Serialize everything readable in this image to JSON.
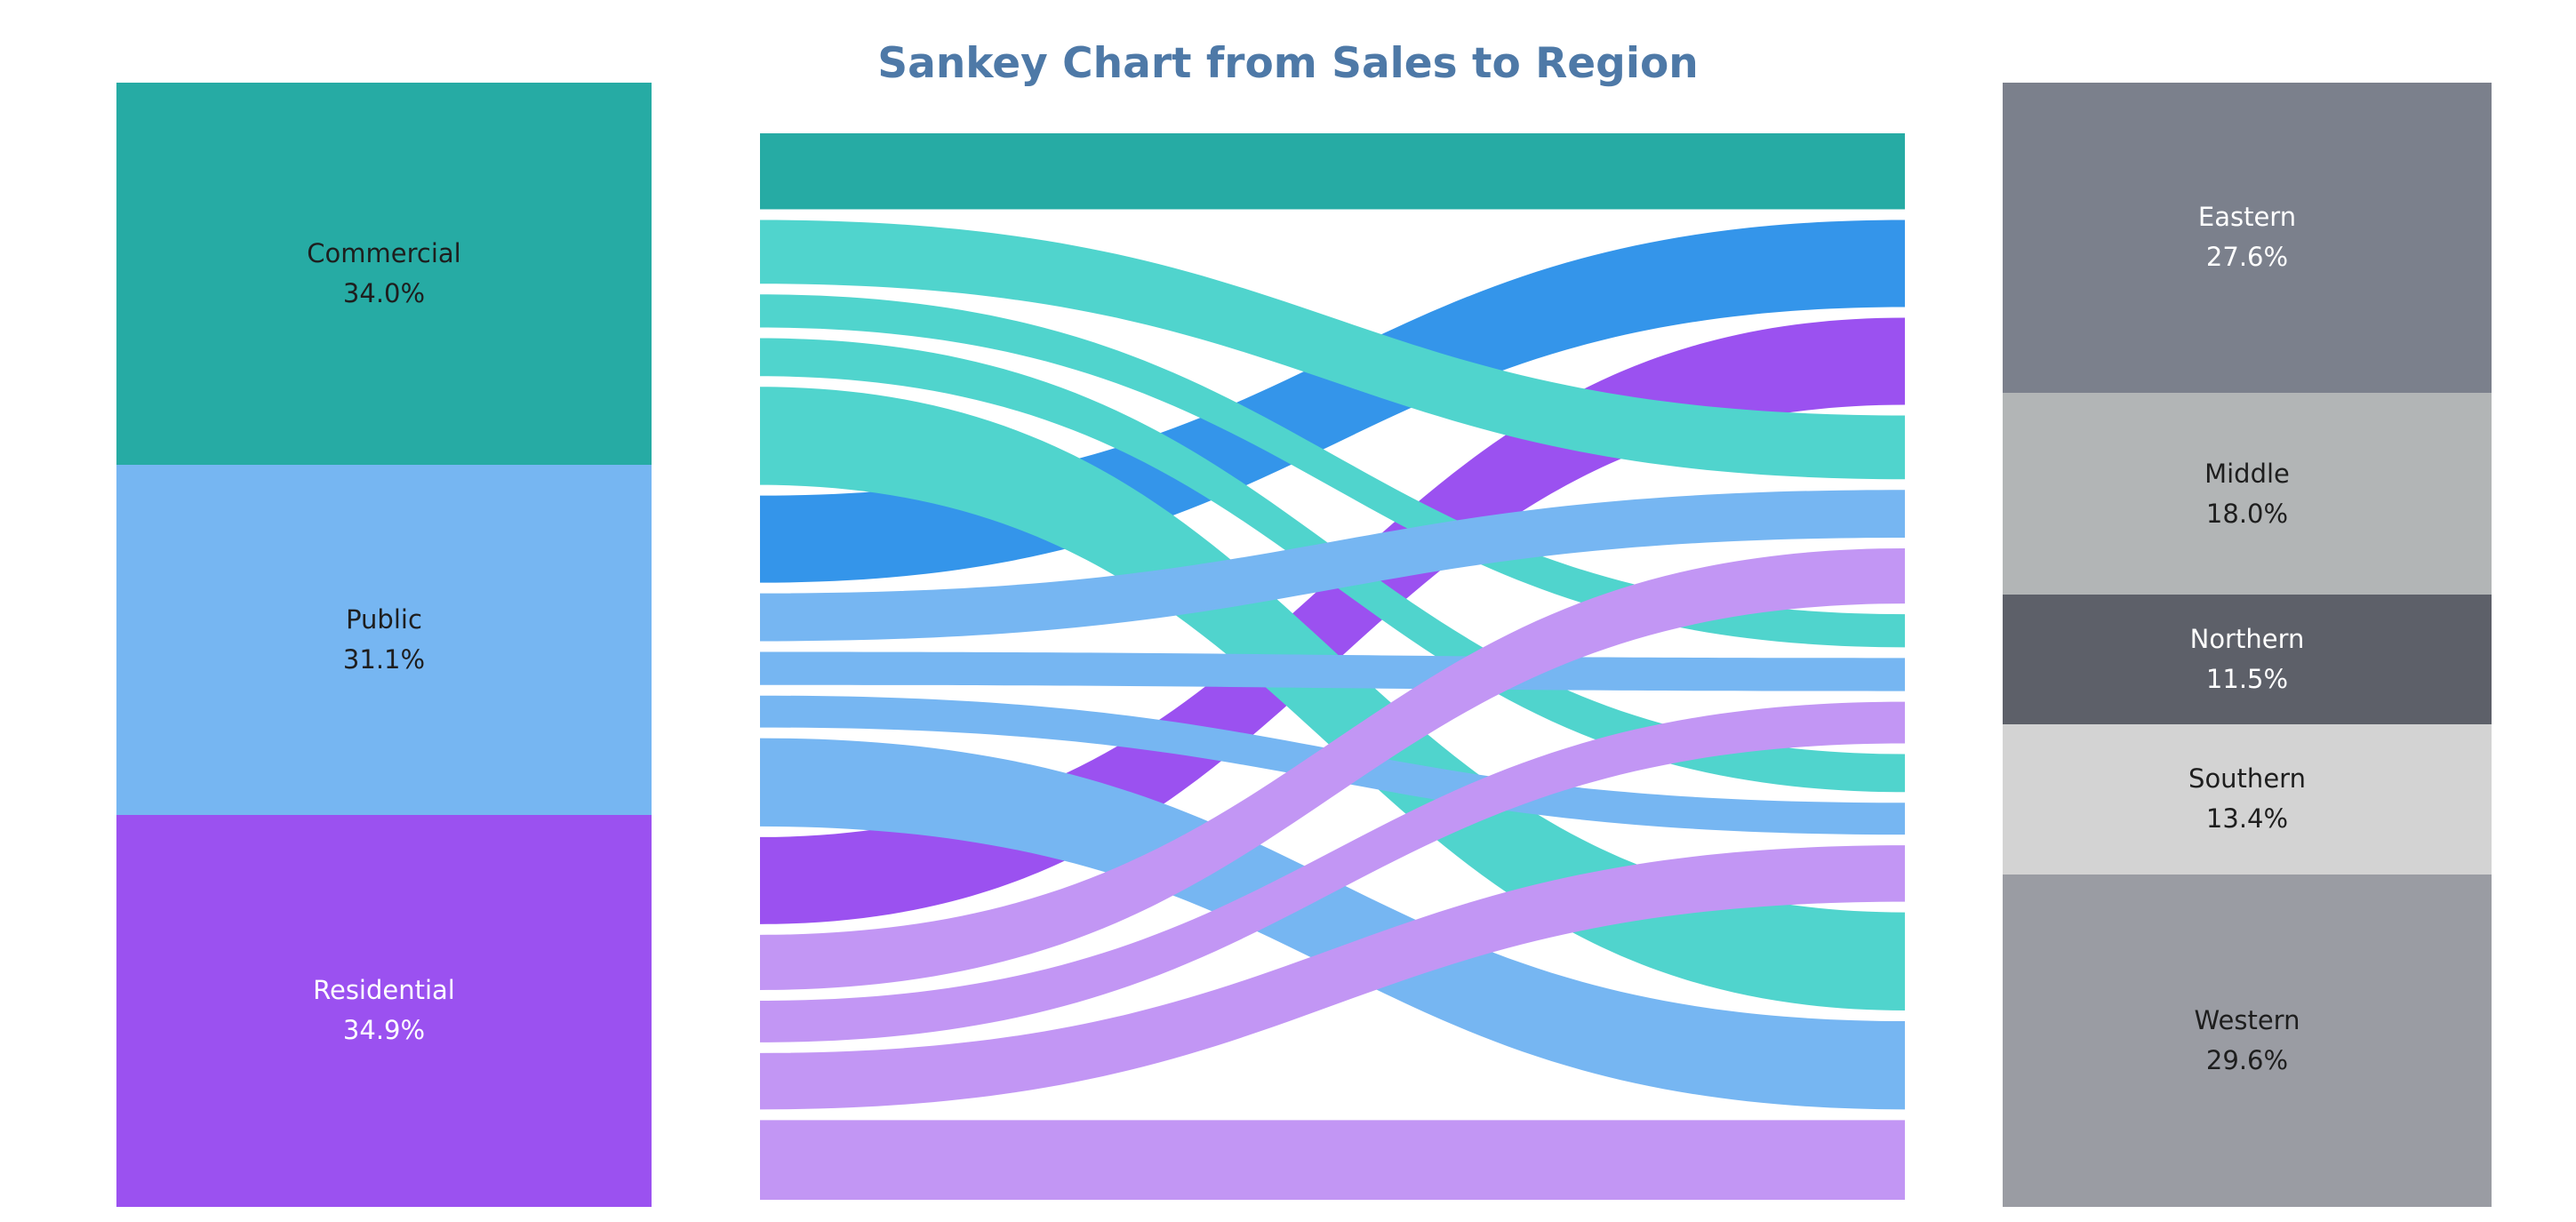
{
  "chart_data": {
    "type": "sankey",
    "title": "Sankey Chart from Sales to Region",
    "sources": [
      {
        "name": "Commercial",
        "percent": "34.0%",
        "share": 34.0,
        "color": "#26aba4",
        "flow_color": "#50d4cd",
        "text_color": "#1e1e1e"
      },
      {
        "name": "Public",
        "percent": "31.1%",
        "share": 31.1,
        "color": "#76b6f2",
        "flow_color": "#76b6f2",
        "text_color": "#1e1e1e"
      },
      {
        "name": "Residential",
        "percent": "34.9%",
        "share": 34.9,
        "color": "#9b51f0",
        "flow_color": "#c296f4",
        "text_color": "#ffffff"
      }
    ],
    "targets": [
      {
        "name": "Eastern",
        "percent": "27.6%",
        "share": 27.6,
        "color": "#7b808c",
        "text_color": "#ffffff"
      },
      {
        "name": "Middle",
        "percent": "18.0%",
        "share": 18.0,
        "color": "#b2b5b6",
        "text_color": "#1e1e1e"
      },
      {
        "name": "Northern",
        "percent": "11.5%",
        "share": 11.5,
        "color": "#5d6069",
        "text_color": "#ffffff"
      },
      {
        "name": "Southern",
        "percent": "13.4%",
        "share": 13.4,
        "color": "#d3d3d3",
        "text_color": "#1e1e1e"
      },
      {
        "name": "Western",
        "percent": "29.6%",
        "share": 29.6,
        "color": "#9a9ca3",
        "text_color": "#1e1e1e"
      }
    ],
    "flow_colors": {
      "dark_blue": "#3495ea",
      "dark_purple": "#9b51f0"
    },
    "links": [
      {
        "source": "Commercial",
        "target": "Commercial",
        "value": 6.2,
        "color": "#26aba4"
      },
      {
        "source": "Commercial",
        "target": "Middle",
        "value": 5.2,
        "color": "#50d4cd"
      },
      {
        "source": "Commercial",
        "target": "Northern",
        "value": 2.7,
        "color": "#50d4cd"
      },
      {
        "source": "Commercial",
        "target": "Southern",
        "value": 3.1,
        "color": "#50d4cd"
      },
      {
        "source": "Commercial",
        "target": "Western",
        "value": 8.0,
        "color": "#50d4cd"
      },
      {
        "source": "Public",
        "target": "Eastern",
        "value": 7.1,
        "color": "#3495ea"
      },
      {
        "source": "Public",
        "target": "Middle",
        "value": 3.9,
        "color": "#76b6f2"
      },
      {
        "source": "Public",
        "target": "Northern",
        "value": 2.7,
        "color": "#76b6f2"
      },
      {
        "source": "Public",
        "target": "Southern",
        "value": 2.6,
        "color": "#76b6f2"
      },
      {
        "source": "Public",
        "target": "Western",
        "value": 7.2,
        "color": "#76b6f2"
      },
      {
        "source": "Residential",
        "target": "Eastern",
        "value": 7.1,
        "color": "#9b51f0"
      },
      {
        "source": "Residential",
        "target": "Middle",
        "value": 4.5,
        "color": "#c296f4"
      },
      {
        "source": "Residential",
        "target": "Northern",
        "value": 3.4,
        "color": "#c296f4"
      },
      {
        "source": "Residential",
        "target": "Southern",
        "value": 4.6,
        "color": "#c296f4"
      },
      {
        "source": "Residential",
        "target": "Residential",
        "value": 6.5,
        "color": "#c296f4"
      }
    ]
  }
}
